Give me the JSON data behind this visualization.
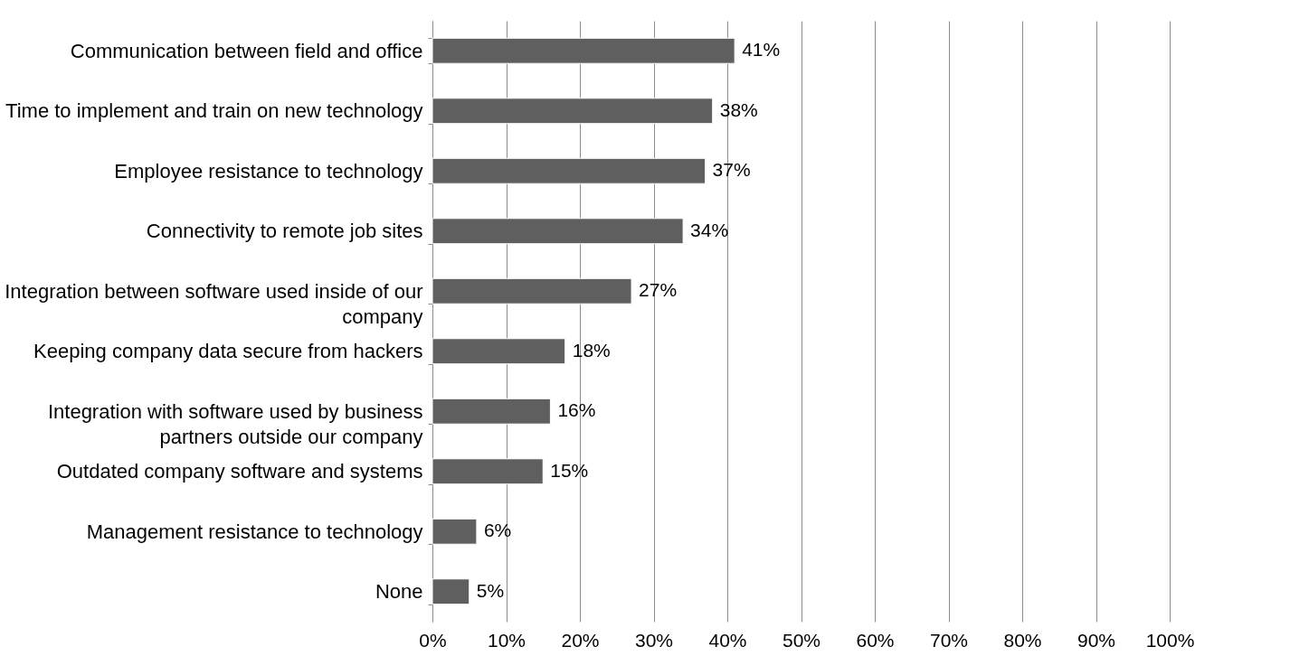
{
  "chart_data": {
    "type": "bar",
    "orientation": "horizontal",
    "categories": [
      "Communication between field and office",
      "Time to implement and train on new technology",
      "Employee resistance to technology",
      "Connectivity to remote job sites",
      "Integration between software used inside of our company",
      "Keeping company data secure from hackers",
      "Integration with software used by business partners outside our company",
      "Outdated company software and systems",
      "Management resistance to technology",
      "None"
    ],
    "values": [
      41,
      38,
      37,
      34,
      27,
      18,
      16,
      15,
      6,
      5
    ],
    "value_labels": [
      "41%",
      "38%",
      "37%",
      "34%",
      "27%",
      "18%",
      "16%",
      "15%",
      "6%",
      "5%"
    ],
    "color": "#5f5f5f",
    "xlim": [
      0,
      100
    ],
    "xticks": [
      {
        "value": 0,
        "label": "0%"
      },
      {
        "value": 10,
        "label": "10%"
      },
      {
        "value": 20,
        "label": "20%"
      },
      {
        "value": 30,
        "label": "30%"
      },
      {
        "value": 40,
        "label": "40%"
      },
      {
        "value": 50,
        "label": "50%"
      },
      {
        "value": 60,
        "label": "60%"
      },
      {
        "value": 70,
        "label": "70%"
      },
      {
        "value": 80,
        "label": "80%"
      },
      {
        "value": 90,
        "label": "90%"
      },
      {
        "value": 100,
        "label": "100%"
      }
    ],
    "grid": "x"
  }
}
